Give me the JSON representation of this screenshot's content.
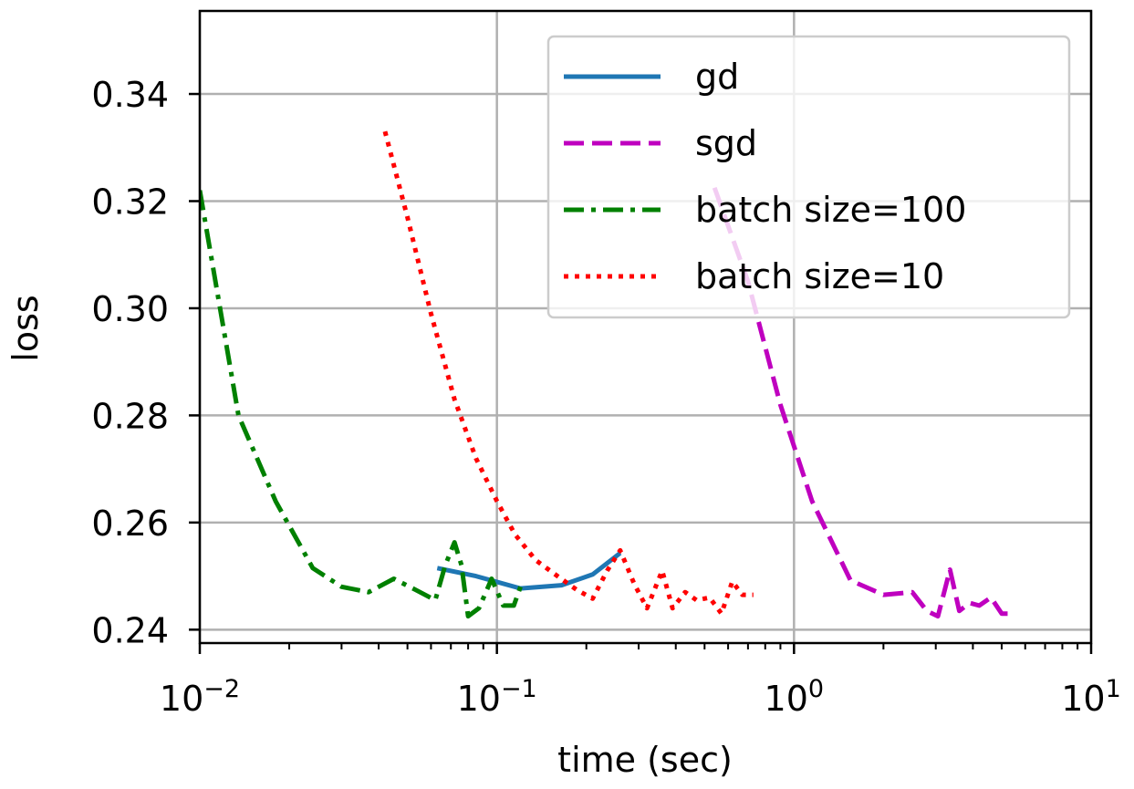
{
  "chart_data": {
    "type": "line",
    "xlabel": "time (sec)",
    "ylabel": "loss",
    "xscale": "log",
    "xlim": [
      0.01,
      10
    ],
    "ylim": [
      0.2375,
      0.3555
    ],
    "grid": true,
    "legend_position": "top-right",
    "x_ticks": [
      {
        "value": 0.01,
        "base": "10",
        "exp": "−2"
      },
      {
        "value": 0.1,
        "base": "10",
        "exp": "−1"
      },
      {
        "value": 1,
        "base": "10",
        "exp": "0"
      },
      {
        "value": 10,
        "base": "10",
        "exp": "1"
      }
    ],
    "y_ticks": [
      {
        "value": 0.24,
        "label": "0.24"
      },
      {
        "value": 0.26,
        "label": "0.26"
      },
      {
        "value": 0.28,
        "label": "0.28"
      },
      {
        "value": 0.3,
        "label": "0.30"
      },
      {
        "value": 0.32,
        "label": "0.32"
      },
      {
        "value": 0.34,
        "label": "0.34"
      }
    ],
    "series": [
      {
        "name": "gd",
        "color": "#1f77b4",
        "dash": "solid",
        "x": [
          0.063,
          0.085,
          0.12,
          0.165,
          0.21,
          0.26
        ],
        "y": [
          0.2515,
          0.25,
          0.2477,
          0.2483,
          0.2503,
          0.2543
        ]
      },
      {
        "name": "sgd",
        "color": "#bf00bf",
        "dash": "dashed",
        "x": [
          0.54,
          0.7,
          0.9,
          1.15,
          1.55,
          2.0,
          2.5,
          2.8,
          3.05,
          3.35,
          3.6,
          3.9,
          4.2,
          4.6,
          5.0,
          5.4
        ],
        "y": [
          0.3225,
          0.305,
          0.282,
          0.264,
          0.2492,
          0.2465,
          0.247,
          0.2435,
          0.2425,
          0.2512,
          0.2435,
          0.245,
          0.2445,
          0.246,
          0.243,
          0.243
        ]
      },
      {
        "name": "batch size=100",
        "color": "#008000",
        "dash": "dashdot",
        "x": [
          0.01,
          0.0135,
          0.018,
          0.024,
          0.03,
          0.037,
          0.045,
          0.053,
          0.062,
          0.067,
          0.072,
          0.076,
          0.08,
          0.087,
          0.096,
          0.105,
          0.114,
          0.12
        ],
        "y": [
          0.322,
          0.28,
          0.264,
          0.2515,
          0.248,
          0.247,
          0.2495,
          0.2475,
          0.2455,
          0.252,
          0.2563,
          0.252,
          0.2425,
          0.244,
          0.2495,
          0.2445,
          0.2445,
          0.248
        ]
      },
      {
        "name": "batch size=10",
        "color": "#ff0000",
        "dash": "dotted",
        "x": [
          0.042,
          0.05,
          0.06,
          0.072,
          0.085,
          0.1,
          0.115,
          0.135,
          0.16,
          0.185,
          0.21,
          0.235,
          0.26,
          0.29,
          0.32,
          0.36,
          0.39,
          0.43,
          0.47,
          0.52,
          0.57,
          0.62,
          0.67,
          0.73
        ],
        "y": [
          0.333,
          0.317,
          0.299,
          0.283,
          0.272,
          0.264,
          0.2578,
          0.253,
          0.25,
          0.2475,
          0.2458,
          0.251,
          0.2548,
          0.2485,
          0.244,
          0.251,
          0.244,
          0.247,
          0.2455,
          0.246,
          0.243,
          0.249,
          0.2465,
          0.2465
        ]
      }
    ]
  }
}
